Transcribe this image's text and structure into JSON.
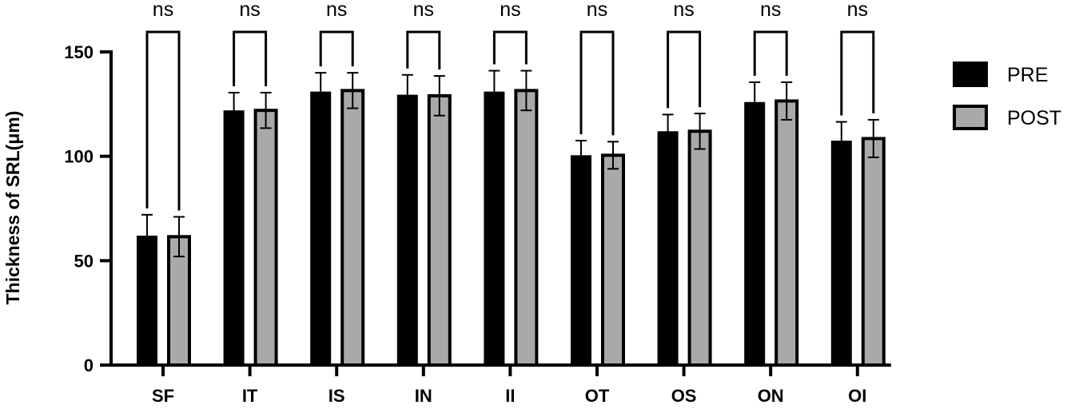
{
  "chart_data": {
    "type": "bar",
    "title": "",
    "xlabel": "",
    "ylabel": "Thickness of SRL(μm)",
    "ylim": [
      0,
      150
    ],
    "yticks": [
      0,
      50,
      100,
      150
    ],
    "categories": [
      "SF",
      "IT",
      "IS",
      "IN",
      "II",
      "OT",
      "OS",
      "ON",
      "OI"
    ],
    "series": [
      {
        "name": "PRE",
        "color": "#000000",
        "values": [
          62,
          122,
          131,
          129.5,
          131,
          100.5,
          112,
          126,
          107.5
        ],
        "errors": [
          10,
          8.5,
          9,
          9.5,
          10,
          7,
          8,
          9.5,
          9
        ]
      },
      {
        "name": "POST",
        "color": "#a9a9a9",
        "values": [
          61.5,
          122,
          131.5,
          129,
          131.5,
          100.5,
          112,
          126.5,
          108.5
        ],
        "errors": [
          9.5,
          8.5,
          8.5,
          9.5,
          9.5,
          6.5,
          8.5,
          9,
          9
        ]
      }
    ],
    "significance": [
      "ns",
      "ns",
      "ns",
      "ns",
      "ns",
      "ns",
      "ns",
      "ns",
      "ns"
    ],
    "legend": {
      "placement": "right",
      "entries": [
        "PRE",
        "POST"
      ]
    },
    "grid": false
  }
}
